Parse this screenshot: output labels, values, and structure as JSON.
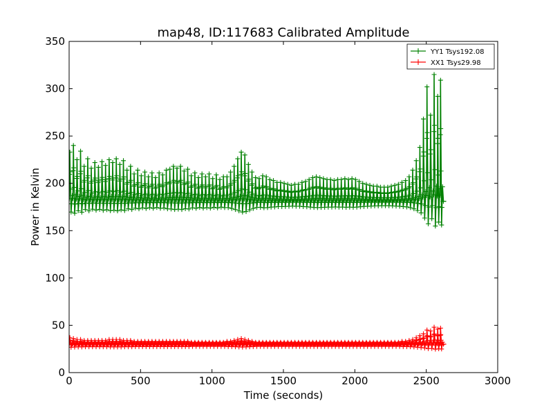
{
  "chart_data": {
    "type": "line",
    "title": "map48, ID:117683 Calibrated Amplitude",
    "xlabel": "Time (seconds)",
    "ylabel": "Power in Kelvin",
    "xlim": [
      0,
      3000
    ],
    "ylim": [
      0,
      350
    ],
    "xticks": [
      0,
      500,
      1000,
      1500,
      2000,
      2500,
      3000
    ],
    "yticks": [
      0,
      50,
      100,
      150,
      200,
      250,
      300,
      350
    ],
    "grid": false,
    "legend_position": "top-right",
    "marker": "+",
    "series": [
      {
        "name": "YY1 Tsys192.08",
        "color": "#008000",
        "baseline": 181,
        "x_start": 0,
        "x_end": 2620,
        "cycle_seconds": 25,
        "peaks": [
          {
            "x": 5,
            "y": 233
          },
          {
            "x": 30,
            "y": 240
          },
          {
            "x": 55,
            "y": 225
          },
          {
            "x": 80,
            "y": 234
          },
          {
            "x": 105,
            "y": 218
          },
          {
            "x": 130,
            "y": 226
          },
          {
            "x": 155,
            "y": 216
          },
          {
            "x": 180,
            "y": 222
          },
          {
            "x": 205,
            "y": 217
          },
          {
            "x": 230,
            "y": 223
          },
          {
            "x": 255,
            "y": 219
          },
          {
            "x": 280,
            "y": 225
          },
          {
            "x": 305,
            "y": 222
          },
          {
            "x": 330,
            "y": 226
          },
          {
            "x": 355,
            "y": 220
          },
          {
            "x": 380,
            "y": 224
          },
          {
            "x": 405,
            "y": 214
          },
          {
            "x": 430,
            "y": 218
          },
          {
            "x": 455,
            "y": 210
          },
          {
            "x": 480,
            "y": 214
          },
          {
            "x": 505,
            "y": 208
          },
          {
            "x": 530,
            "y": 212
          },
          {
            "x": 555,
            "y": 207
          },
          {
            "x": 580,
            "y": 211
          },
          {
            "x": 605,
            "y": 206
          },
          {
            "x": 630,
            "y": 211
          },
          {
            "x": 655,
            "y": 209
          },
          {
            "x": 680,
            "y": 214
          },
          {
            "x": 705,
            "y": 215
          },
          {
            "x": 730,
            "y": 218
          },
          {
            "x": 755,
            "y": 216
          },
          {
            "x": 780,
            "y": 218
          },
          {
            "x": 805,
            "y": 213
          },
          {
            "x": 830,
            "y": 215
          },
          {
            "x": 855,
            "y": 208
          },
          {
            "x": 880,
            "y": 211
          },
          {
            "x": 905,
            "y": 206
          },
          {
            "x": 930,
            "y": 210
          },
          {
            "x": 955,
            "y": 207
          },
          {
            "x": 980,
            "y": 210
          },
          {
            "x": 1005,
            "y": 205
          },
          {
            "x": 1030,
            "y": 209
          },
          {
            "x": 1055,
            "y": 204
          },
          {
            "x": 1080,
            "y": 207
          },
          {
            "x": 1105,
            "y": 207
          },
          {
            "x": 1130,
            "y": 212
          },
          {
            "x": 1155,
            "y": 218
          },
          {
            "x": 1180,
            "y": 226
          },
          {
            "x": 1205,
            "y": 233
          },
          {
            "x": 1230,
            "y": 230
          },
          {
            "x": 1255,
            "y": 220
          },
          {
            "x": 1280,
            "y": 212
          },
          {
            "x": 1305,
            "y": 206
          },
          {
            "x": 1330,
            "y": 205
          },
          {
            "x": 1355,
            "y": 208
          },
          {
            "x": 1380,
            "y": 207
          },
          {
            "x": 1405,
            "y": 204
          },
          {
            "x": 1430,
            "y": 203
          },
          {
            "x": 1455,
            "y": 201
          },
          {
            "x": 1480,
            "y": 201
          },
          {
            "x": 1505,
            "y": 200
          },
          {
            "x": 1530,
            "y": 199
          },
          {
            "x": 1555,
            "y": 198
          },
          {
            "x": 1580,
            "y": 199
          },
          {
            "x": 1605,
            "y": 199
          },
          {
            "x": 1630,
            "y": 201
          },
          {
            "x": 1655,
            "y": 202
          },
          {
            "x": 1680,
            "y": 204
          },
          {
            "x": 1705,
            "y": 206
          },
          {
            "x": 1730,
            "y": 207
          },
          {
            "x": 1755,
            "y": 206
          },
          {
            "x": 1780,
            "y": 205
          },
          {
            "x": 1805,
            "y": 204
          },
          {
            "x": 1830,
            "y": 204
          },
          {
            "x": 1855,
            "y": 203
          },
          {
            "x": 1880,
            "y": 204
          },
          {
            "x": 1905,
            "y": 204
          },
          {
            "x": 1930,
            "y": 205
          },
          {
            "x": 1955,
            "y": 204
          },
          {
            "x": 1980,
            "y": 205
          },
          {
            "x": 2005,
            "y": 204
          },
          {
            "x": 2030,
            "y": 202
          },
          {
            "x": 2055,
            "y": 200
          },
          {
            "x": 2080,
            "y": 199
          },
          {
            "x": 2105,
            "y": 198
          },
          {
            "x": 2130,
            "y": 197
          },
          {
            "x": 2155,
            "y": 197
          },
          {
            "x": 2180,
            "y": 196
          },
          {
            "x": 2205,
            "y": 196
          },
          {
            "x": 2230,
            "y": 196
          },
          {
            "x": 2255,
            "y": 197
          },
          {
            "x": 2280,
            "y": 198
          },
          {
            "x": 2305,
            "y": 199
          },
          {
            "x": 2330,
            "y": 201
          },
          {
            "x": 2355,
            "y": 203
          },
          {
            "x": 2380,
            "y": 207
          },
          {
            "x": 2405,
            "y": 214
          },
          {
            "x": 2430,
            "y": 224
          },
          {
            "x": 2455,
            "y": 238
          },
          {
            "x": 2480,
            "y": 268
          },
          {
            "x": 2505,
            "y": 302
          },
          {
            "x": 2530,
            "y": 272
          },
          {
            "x": 2555,
            "y": 315
          },
          {
            "x": 2580,
            "y": 292
          },
          {
            "x": 2600,
            "y": 309
          }
        ]
      },
      {
        "name": "XX1 Tsys29.98",
        "color": "#ff0000",
        "baseline": 30,
        "x_start": 0,
        "x_end": 2620,
        "cycle_seconds": 25,
        "peaks": [
          {
            "x": 5,
            "y": 37
          },
          {
            "x": 30,
            "y": 36
          },
          {
            "x": 55,
            "y": 35
          },
          {
            "x": 80,
            "y": 35
          },
          {
            "x": 105,
            "y": 34
          },
          {
            "x": 130,
            "y": 34
          },
          {
            "x": 155,
            "y": 34
          },
          {
            "x": 180,
            "y": 34
          },
          {
            "x": 205,
            "y": 34
          },
          {
            "x": 230,
            "y": 34
          },
          {
            "x": 255,
            "y": 34
          },
          {
            "x": 280,
            "y": 35
          },
          {
            "x": 305,
            "y": 35
          },
          {
            "x": 330,
            "y": 35
          },
          {
            "x": 355,
            "y": 35
          },
          {
            "x": 380,
            "y": 34
          },
          {
            "x": 405,
            "y": 34
          },
          {
            "x": 430,
            "y": 34
          },
          {
            "x": 455,
            "y": 33
          },
          {
            "x": 480,
            "y": 33
          },
          {
            "x": 505,
            "y": 33
          },
          {
            "x": 530,
            "y": 33
          },
          {
            "x": 555,
            "y": 33
          },
          {
            "x": 580,
            "y": 33
          },
          {
            "x": 605,
            "y": 33
          },
          {
            "x": 630,
            "y": 33
          },
          {
            "x": 655,
            "y": 33
          },
          {
            "x": 680,
            "y": 33
          },
          {
            "x": 705,
            "y": 33
          },
          {
            "x": 730,
            "y": 33
          },
          {
            "x": 755,
            "y": 33
          },
          {
            "x": 780,
            "y": 33
          },
          {
            "x": 805,
            "y": 33
          },
          {
            "x": 830,
            "y": 33
          },
          {
            "x": 855,
            "y": 32
          },
          {
            "x": 880,
            "y": 32
          },
          {
            "x": 905,
            "y": 32
          },
          {
            "x": 930,
            "y": 32
          },
          {
            "x": 955,
            "y": 32
          },
          {
            "x": 980,
            "y": 32
          },
          {
            "x": 1005,
            "y": 32
          },
          {
            "x": 1030,
            "y": 32
          },
          {
            "x": 1055,
            "y": 32
          },
          {
            "x": 1080,
            "y": 32
          },
          {
            "x": 1105,
            "y": 33
          },
          {
            "x": 1130,
            "y": 33
          },
          {
            "x": 1155,
            "y": 34
          },
          {
            "x": 1180,
            "y": 35
          },
          {
            "x": 1205,
            "y": 36
          },
          {
            "x": 1230,
            "y": 35
          },
          {
            "x": 1255,
            "y": 34
          },
          {
            "x": 1280,
            "y": 33
          },
          {
            "x": 1305,
            "y": 32
          },
          {
            "x": 1330,
            "y": 32
          },
          {
            "x": 1355,
            "y": 32
          },
          {
            "x": 1380,
            "y": 32
          },
          {
            "x": 1405,
            "y": 32
          },
          {
            "x": 1430,
            "y": 32
          },
          {
            "x": 1455,
            "y": 32
          },
          {
            "x": 1480,
            "y": 32
          },
          {
            "x": 1505,
            "y": 32
          },
          {
            "x": 1530,
            "y": 32
          },
          {
            "x": 1555,
            "y": 32
          },
          {
            "x": 1580,
            "y": 32
          },
          {
            "x": 1605,
            "y": 32
          },
          {
            "x": 1630,
            "y": 32
          },
          {
            "x": 1655,
            "y": 32
          },
          {
            "x": 1680,
            "y": 32
          },
          {
            "x": 1705,
            "y": 32
          },
          {
            "x": 1730,
            "y": 32
          },
          {
            "x": 1755,
            "y": 32
          },
          {
            "x": 1780,
            "y": 32
          },
          {
            "x": 1805,
            "y": 32
          },
          {
            "x": 1830,
            "y": 32
          },
          {
            "x": 1855,
            "y": 32
          },
          {
            "x": 1880,
            "y": 32
          },
          {
            "x": 1905,
            "y": 32
          },
          {
            "x": 1930,
            "y": 32
          },
          {
            "x": 1955,
            "y": 32
          },
          {
            "x": 1980,
            "y": 32
          },
          {
            "x": 2005,
            "y": 32
          },
          {
            "x": 2030,
            "y": 32
          },
          {
            "x": 2055,
            "y": 32
          },
          {
            "x": 2080,
            "y": 32
          },
          {
            "x": 2105,
            "y": 32
          },
          {
            "x": 2130,
            "y": 32
          },
          {
            "x": 2155,
            "y": 32
          },
          {
            "x": 2180,
            "y": 32
          },
          {
            "x": 2205,
            "y": 32
          },
          {
            "x": 2230,
            "y": 32
          },
          {
            "x": 2255,
            "y": 32
          },
          {
            "x": 2280,
            "y": 32
          },
          {
            "x": 2305,
            "y": 32
          },
          {
            "x": 2330,
            "y": 33
          },
          {
            "x": 2355,
            "y": 33
          },
          {
            "x": 2380,
            "y": 34
          },
          {
            "x": 2405,
            "y": 35
          },
          {
            "x": 2430,
            "y": 37
          },
          {
            "x": 2455,
            "y": 39
          },
          {
            "x": 2480,
            "y": 41
          },
          {
            "x": 2505,
            "y": 45
          },
          {
            "x": 2530,
            "y": 44
          },
          {
            "x": 2555,
            "y": 48
          },
          {
            "x": 2580,
            "y": 46
          },
          {
            "x": 2600,
            "y": 47
          }
        ]
      }
    ]
  }
}
